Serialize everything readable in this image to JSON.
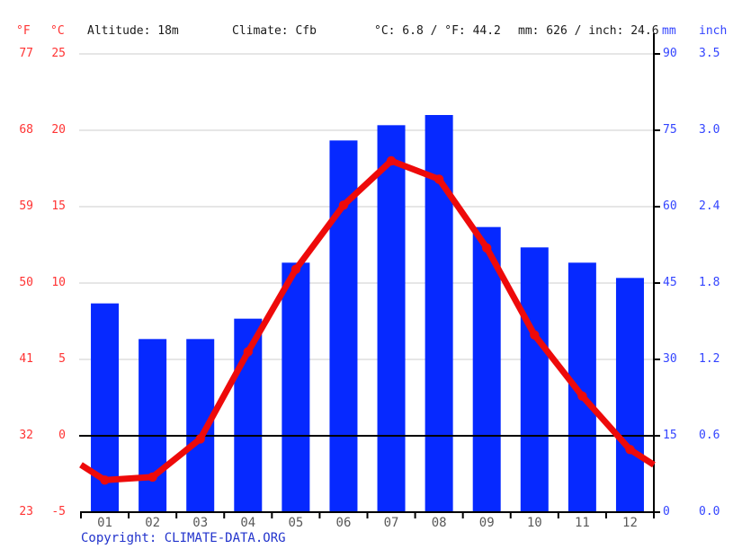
{
  "header": {
    "f_unit": "°F",
    "c_unit": "°C",
    "altitude": "Altitude: 18m",
    "climate": "Climate: Cfb",
    "avg_temp": "°C: 6.8 / °F: 44.2",
    "precip_total": "mm: 626 / inch: 24.6",
    "mm_unit": "mm",
    "inch_unit": "inch"
  },
  "footer": {
    "copyright_label": "Copyright: ",
    "copyright_link": "CLIMATE-DATA.ORG"
  },
  "colors": {
    "bar": "#0629ff",
    "line": "#ee0a0a",
    "red_text": "#ff3333",
    "blue_text": "#3344ff",
    "link": "#2233cc",
    "grid": "#cccccc",
    "axis": "#000000",
    "month_text": "#595959",
    "ink": "#1a1a1a"
  },
  "chart_data": {
    "type": "climograph: bar (precipitation) + line (temperature)",
    "title": "Climate graph — Altitude: 18m, Climate: Cfb, mean 6.8 °C / 44.2 °F, 626 mm / 24.6 inch",
    "categories": [
      "01",
      "02",
      "03",
      "04",
      "05",
      "06",
      "07",
      "08",
      "09",
      "10",
      "11",
      "12"
    ],
    "series": [
      {
        "name": "Precipitation (mm)",
        "type": "bar",
        "values": [
          41,
          34,
          34,
          38,
          49,
          73,
          76,
          78,
          56,
          52,
          49,
          46
        ]
      },
      {
        "name": "Temperature (°C)",
        "type": "line",
        "values": [
          -2.9,
          -2.7,
          -0.2,
          5.5,
          10.9,
          15.1,
          18.0,
          16.8,
          12.3,
          6.6,
          2.6,
          -0.9
        ]
      }
    ],
    "axes": {
      "left_f_ticks": [
        "77",
        "68",
        "59",
        "50",
        "41",
        "32",
        "23"
      ],
      "left_c_ticks": [
        "25",
        "20",
        "15",
        "10",
        "5",
        "0",
        "-5"
      ],
      "right_mm_ticks": [
        "90",
        "75",
        "60",
        "45",
        "30",
        "15",
        "0"
      ],
      "right_inch_ticks": [
        "3.5",
        "3.0",
        "2.4",
        "1.8",
        "1.2",
        "0.6",
        "0.0"
      ],
      "c_range": [
        -5,
        25
      ],
      "mm_range": [
        0,
        90
      ]
    },
    "grid": true,
    "zero_line_c": 0,
    "legend_position": "none"
  }
}
